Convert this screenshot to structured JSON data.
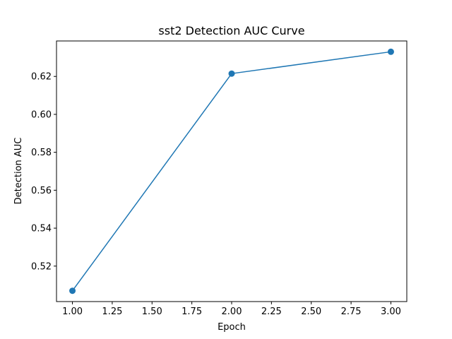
{
  "chart_data": {
    "type": "line",
    "title": "sst2 Detection AUC Curve",
    "xlabel": "Epoch",
    "ylabel": "Detection AUC",
    "xlim": [
      0.9,
      3.1
    ],
    "ylim": [
      0.5013,
      0.6387
    ],
    "xticks": [
      1.0,
      1.25,
      1.5,
      1.75,
      2.0,
      2.25,
      2.5,
      2.75,
      3.0
    ],
    "xtick_labels": [
      "1.00",
      "1.25",
      "1.50",
      "1.75",
      "2.00",
      "2.25",
      "2.50",
      "2.75",
      "3.00"
    ],
    "yticks": [
      0.52,
      0.54,
      0.56,
      0.58,
      0.6,
      0.62
    ],
    "ytick_labels": [
      "0.52",
      "0.54",
      "0.56",
      "0.58",
      "0.60",
      "0.62"
    ],
    "grid": false,
    "series": [
      {
        "x": [
          1,
          2,
          3
        ],
        "values": [
          0.507,
          0.6215,
          0.633
        ],
        "color": "#1f77b4",
        "marker": "circle"
      }
    ]
  }
}
